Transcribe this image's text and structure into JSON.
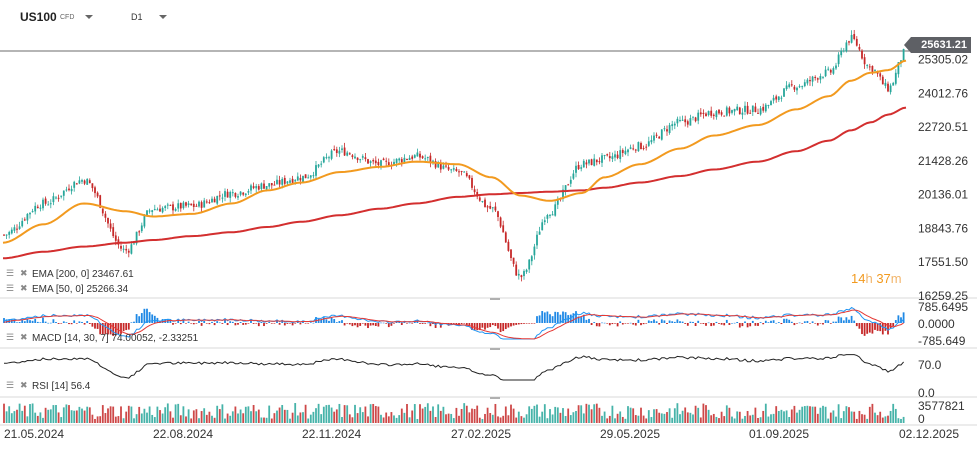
{
  "header": {
    "symbol": "US100",
    "symbol_type": "CFD",
    "interval": "D1"
  },
  "current_price": "25631.21",
  "countdown": {
    "hours": "14",
    "hours_unit": "h",
    "minutes": "37",
    "minutes_unit": "m"
  },
  "price_axis": {
    "labels": [
      "25305.02",
      "24012.76",
      "22720.51",
      "21428.26",
      "20136.01",
      "18843.76",
      "17551.50",
      "16259.25"
    ],
    "range": [
      16259.25,
      25900
    ]
  },
  "indicators": {
    "ema200": {
      "label": "EMA  [200,  0]  23467.61"
    },
    "ema50": {
      "label": "EMA  [50,  0]  25266.34"
    },
    "macd": {
      "label": "MACD  [14,  30,  7]  74.00052,  -2.33251",
      "axis": [
        "785.6495",
        "0.0000",
        "-785.649"
      ]
    },
    "rsi": {
      "label": "RSI  [14]  56.4",
      "axis": [
        "70.0",
        "0.0"
      ]
    },
    "volume": {
      "axis": [
        "3577821",
        "0"
      ]
    }
  },
  "date_axis": [
    "21.05.2024",
    "22.08.2024",
    "22.11.2024",
    "27.02.2025",
    "29.05.2025",
    "01.09.2025",
    "02.12.2025"
  ],
  "colors": {
    "up": "#26a69a",
    "down": "#c62828",
    "ema50": "#f29a1f",
    "ema200": "#d32f2f",
    "macd_line": "#2196f3",
    "signal_line": "#e53935",
    "hist_pos": "#1e88e5",
    "hist_neg": "#c62828",
    "rsi_line": "#222222"
  },
  "chart_data": {
    "type": "line",
    "title": "US100 D1",
    "x": [
      "2024-05-21",
      "2024-06-15",
      "2024-07-10",
      "2024-08-05",
      "2024-08-22",
      "2024-09-15",
      "2024-10-10",
      "2024-11-01",
      "2024-11-22",
      "2024-12-16",
      "2025-01-10",
      "2025-02-01",
      "2025-02-27",
      "2025-03-20",
      "2025-04-07",
      "2025-04-25",
      "2025-05-15",
      "2025-05-29",
      "2025-06-20",
      "2025-07-15",
      "2025-08-05",
      "2025-09-01",
      "2025-09-25",
      "2025-10-15",
      "2025-10-29",
      "2025-11-10",
      "2025-11-21",
      "2025-12-02"
    ],
    "series": [
      {
        "name": "US100",
        "values": [
          18600,
          19800,
          20700,
          18000,
          19600,
          19700,
          20200,
          20500,
          20800,
          21800,
          21300,
          21600,
          21000,
          19600,
          17000,
          19500,
          21300,
          21500,
          22000,
          22900,
          23300,
          23400,
          24300,
          24800,
          26100,
          25000,
          24200,
          25631
        ]
      },
      {
        "name": "EMA [50, 0]",
        "values": [
          18300,
          19000,
          19800,
          19500,
          19300,
          19400,
          19800,
          20300,
          20600,
          21000,
          21200,
          21400,
          21300,
          20800,
          20100,
          19900,
          20200,
          20800,
          21300,
          21900,
          22400,
          22800,
          23400,
          23900,
          24500,
          24800,
          24900,
          25266
        ]
      },
      {
        "name": "EMA [200, 0]",
        "values": [
          17700,
          17950,
          18150,
          18300,
          18400,
          18550,
          18700,
          18900,
          19100,
          19350,
          19600,
          19800,
          20050,
          20150,
          20200,
          20250,
          20300,
          20400,
          20600,
          20850,
          21100,
          21400,
          21800,
          22200,
          22600,
          22900,
          23200,
          23467
        ]
      }
    ],
    "xlabel": "",
    "ylabel": "",
    "ylim": [
      16259.25,
      25900
    ]
  }
}
